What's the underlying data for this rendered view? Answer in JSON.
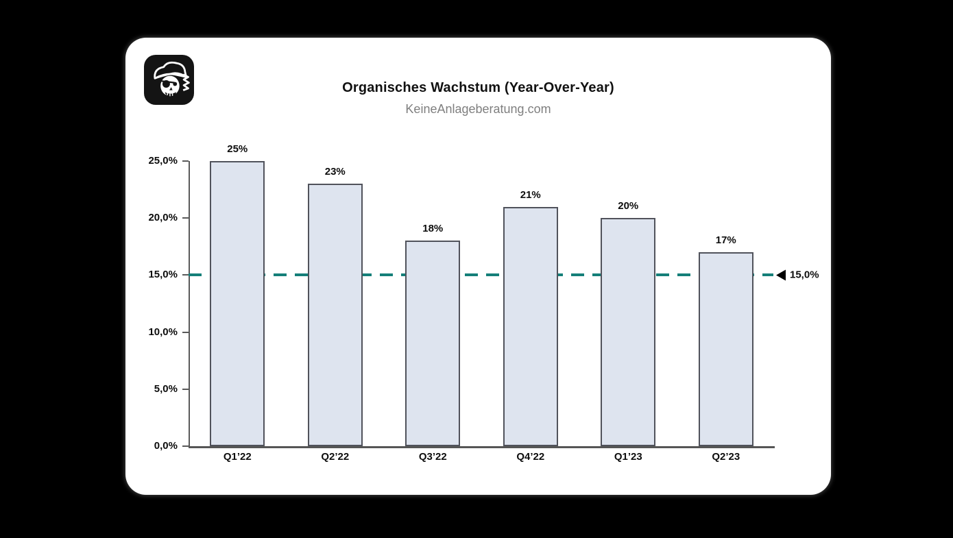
{
  "page": {
    "background": "#000000"
  },
  "card": {
    "background": "#FFFFFF"
  },
  "logo": {
    "icon": "pirate-skull-icon"
  },
  "header": {
    "title": "Organisches Wachstum (Year-Over-Year)",
    "subtitle": "KeineAnlageberatung.com"
  },
  "chart_data": {
    "type": "bar",
    "title": "Organisches Wachstum (Year-Over-Year)",
    "subtitle": "KeineAnlageberatung.com",
    "categories": [
      "Q1’22",
      "Q2’22",
      "Q3’22",
      "Q4’22",
      "Q1’23",
      "Q2’23"
    ],
    "values": [
      25,
      23,
      18,
      21,
      20,
      17
    ],
    "value_labels": [
      "25%",
      "23%",
      "18%",
      "21%",
      "20%",
      "17%"
    ],
    "y_ticks": [
      "25,0%",
      "20,0%",
      "15,0%",
      "10,0%",
      "5,0%",
      "0,0%"
    ],
    "y_tick_values": [
      25,
      20,
      15,
      10,
      5,
      0
    ],
    "ylim": [
      0,
      25
    ],
    "xlabel": "",
    "ylabel": "",
    "grid": false,
    "legend": null,
    "reference_line": {
      "value": 15,
      "label": "15,0%",
      "color": "#157F79",
      "style": "dashed",
      "arrow": "left-triangle"
    },
    "colors": {
      "bar_fill": "#DEE4EF",
      "bar_border": "#50525B",
      "axis": "#595959",
      "text": "#0D0D0D",
      "subtitle": "#7F7F7F",
      "accent_teal": "#157F79"
    }
  }
}
